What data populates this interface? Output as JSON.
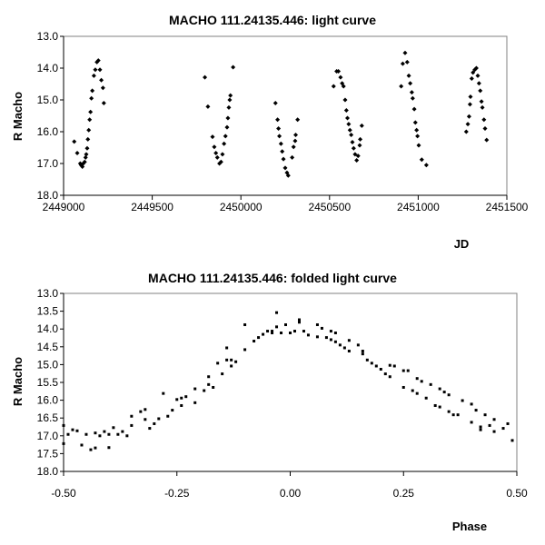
{
  "chart_data": [
    {
      "type": "scatter",
      "title": "MACHO 111.24135.446: light curve",
      "xlabel": "JD",
      "ylabel": "R Macho",
      "xlim": [
        2449000,
        2451500
      ],
      "ylim": [
        18.0,
        13.0
      ],
      "y_inverted": true,
      "grid": false,
      "marker": "diamond",
      "x_ticks": [
        "2449000",
        "2449500",
        "2450000",
        "2450500",
        "2451000",
        "2451500"
      ],
      "x_tick_values": [
        2449000,
        2449500,
        2450000,
        2450500,
        2451000,
        2451500
      ],
      "y_ticks": [
        "13.0",
        "14.0",
        "15.0",
        "16.0",
        "17.0",
        "18.0"
      ],
      "y_tick_values": [
        13,
        14,
        15,
        16,
        17,
        18
      ],
      "points": [
        [
          2449060,
          16.31
        ],
        [
          2449077,
          16.67
        ],
        [
          2449094,
          17.0
        ],
        [
          2449099,
          17.05
        ],
        [
          2449106,
          17.1
        ],
        [
          2449111,
          17.0
        ],
        [
          2449119,
          16.95
        ],
        [
          2449124,
          16.81
        ],
        [
          2449128,
          16.71
        ],
        [
          2449133,
          16.52
        ],
        [
          2449137,
          16.24
        ],
        [
          2449142,
          15.95
        ],
        [
          2449147,
          15.62
        ],
        [
          2449152,
          15.38
        ],
        [
          2449157,
          14.95
        ],
        [
          2449162,
          14.71
        ],
        [
          2449171,
          14.24
        ],
        [
          2449179,
          14.05
        ],
        [
          2449188,
          13.81
        ],
        [
          2449196,
          13.76
        ],
        [
          2449205,
          14.05
        ],
        [
          2449213,
          14.38
        ],
        [
          2449222,
          14.62
        ],
        [
          2449227,
          15.1
        ],
        [
          2449797,
          14.29
        ],
        [
          2449814,
          15.21
        ],
        [
          2449840,
          16.16
        ],
        [
          2449850,
          16.48
        ],
        [
          2449859,
          16.67
        ],
        [
          2449867,
          16.81
        ],
        [
          2449879,
          17.0
        ],
        [
          2449888,
          16.95
        ],
        [
          2449896,
          16.71
        ],
        [
          2449905,
          16.38
        ],
        [
          2449913,
          16.14
        ],
        [
          2449922,
          15.86
        ],
        [
          2449927,
          15.57
        ],
        [
          2449932,
          15.24
        ],
        [
          2449937,
          15.0
        ],
        [
          2449941,
          14.86
        ],
        [
          2449956,
          13.97
        ],
        [
          2450195,
          15.1
        ],
        [
          2450207,
          15.62
        ],
        [
          2450212,
          15.9
        ],
        [
          2450217,
          16.14
        ],
        [
          2450226,
          16.38
        ],
        [
          2450233,
          16.62
        ],
        [
          2450240,
          16.86
        ],
        [
          2450250,
          17.14
        ],
        [
          2450260,
          17.29
        ],
        [
          2450267,
          17.38
        ],
        [
          2450289,
          16.81
        ],
        [
          2450297,
          16.48
        ],
        [
          2450306,
          16.29
        ],
        [
          2450309,
          16.1
        ],
        [
          2450320,
          15.62
        ],
        [
          2450523,
          14.57
        ],
        [
          2450540,
          14.1
        ],
        [
          2450550,
          14.1
        ],
        [
          2450562,
          14.29
        ],
        [
          2450571,
          14.48
        ],
        [
          2450579,
          14.57
        ],
        [
          2450588,
          15.0
        ],
        [
          2450595,
          15.33
        ],
        [
          2450601,
          15.57
        ],
        [
          2450608,
          15.76
        ],
        [
          2450615,
          15.95
        ],
        [
          2450622,
          16.1
        ],
        [
          2450629,
          16.33
        ],
        [
          2450636,
          16.52
        ],
        [
          2450644,
          16.71
        ],
        [
          2450653,
          16.9
        ],
        [
          2450661,
          16.76
        ],
        [
          2450670,
          16.43
        ],
        [
          2450673,
          16.24
        ],
        [
          2450682,
          15.81
        ],
        [
          2450904,
          14.57
        ],
        [
          2450913,
          13.86
        ],
        [
          2450926,
          13.52
        ],
        [
          2450938,
          13.81
        ],
        [
          2450947,
          14.24
        ],
        [
          2450955,
          14.48
        ],
        [
          2450964,
          14.76
        ],
        [
          2450969,
          14.95
        ],
        [
          2450978,
          15.29
        ],
        [
          2450984,
          15.71
        ],
        [
          2450991,
          15.95
        ],
        [
          2450996,
          16.14
        ],
        [
          2451003,
          16.43
        ],
        [
          2451020,
          16.88
        ],
        [
          2451046,
          17.05
        ],
        [
          2451271,
          16.0
        ],
        [
          2451280,
          15.76
        ],
        [
          2451287,
          15.52
        ],
        [
          2451292,
          15.14
        ],
        [
          2451295,
          14.9
        ],
        [
          2451302,
          14.33
        ],
        [
          2451309,
          14.14
        ],
        [
          2451319,
          14.05
        ],
        [
          2451328,
          14.0
        ],
        [
          2451336,
          14.24
        ],
        [
          2451343,
          14.48
        ],
        [
          2451350,
          14.71
        ],
        [
          2451357,
          15.05
        ],
        [
          2451362,
          15.24
        ],
        [
          2451371,
          15.62
        ],
        [
          2451377,
          15.9
        ],
        [
          2451386,
          16.26
        ]
      ]
    },
    {
      "type": "scatter",
      "title": "MACHO 111.24135.446: folded light curve",
      "xlabel": "Phase",
      "ylabel": "R Macho",
      "xlim": [
        -0.5,
        0.5
      ],
      "ylim": [
        18.0,
        13.0
      ],
      "y_inverted": true,
      "grid": false,
      "marker": "square",
      "x_ticks": [
        "-0.50",
        "-0.25",
        "0.00",
        "0.25",
        "0.50"
      ],
      "x_tick_values": [
        -0.5,
        -0.25,
        0,
        0.25,
        0.5
      ],
      "y_ticks": [
        "13.0",
        "13.5",
        "14.0",
        "14.5",
        "15.0",
        "15.5",
        "16.0",
        "16.5",
        "17.0",
        "17.5",
        "18.0"
      ],
      "y_tick_values": [
        13,
        13.5,
        14,
        14.5,
        15,
        15.5,
        16,
        16.5,
        17,
        17.5,
        18
      ],
      "points": [
        [
          -0.5,
          16.71
        ],
        [
          -0.5,
          17.22
        ],
        [
          -0.49,
          16.96
        ],
        [
          -0.48,
          16.83
        ],
        [
          -0.47,
          16.86
        ],
        [
          -0.46,
          17.26
        ],
        [
          -0.45,
          16.96
        ],
        [
          -0.44,
          17.39
        ],
        [
          -0.43,
          17.34
        ],
        [
          -0.43,
          16.92
        ],
        [
          -0.42,
          17.0
        ],
        [
          -0.41,
          16.88
        ],
        [
          -0.4,
          17.33
        ],
        [
          -0.4,
          16.96
        ],
        [
          -0.39,
          16.77
        ],
        [
          -0.38,
          16.96
        ],
        [
          -0.37,
          16.88
        ],
        [
          -0.36,
          17.0
        ],
        [
          -0.35,
          16.71
        ],
        [
          -0.35,
          16.45
        ],
        [
          -0.33,
          16.32
        ],
        [
          -0.32,
          16.26
        ],
        [
          -0.32,
          16.54
        ],
        [
          -0.31,
          16.79
        ],
        [
          -0.3,
          16.66
        ],
        [
          -0.29,
          16.52
        ],
        [
          -0.28,
          15.81
        ],
        [
          -0.27,
          16.45
        ],
        [
          -0.26,
          16.28
        ],
        [
          -0.25,
          15.98
        ],
        [
          -0.24,
          16.15
        ],
        [
          -0.24,
          15.94
        ],
        [
          -0.23,
          15.9
        ],
        [
          -0.21,
          16.07
        ],
        [
          -0.21,
          15.68
        ],
        [
          -0.19,
          15.73
        ],
        [
          -0.18,
          15.34
        ],
        [
          -0.18,
          15.56
        ],
        [
          -0.17,
          15.64
        ],
        [
          -0.16,
          14.96
        ],
        [
          -0.15,
          15.26
        ],
        [
          -0.14,
          14.87
        ],
        [
          -0.14,
          14.53
        ],
        [
          -0.13,
          15.04
        ],
        [
          -0.13,
          14.87
        ],
        [
          -0.12,
          14.92
        ],
        [
          -0.1,
          13.88
        ],
        [
          -0.1,
          14.58
        ],
        [
          -0.08,
          14.34
        ],
        [
          -0.07,
          14.24
        ],
        [
          -0.06,
          14.15
        ],
        [
          -0.05,
          14.06
        ],
        [
          -0.04,
          14.11
        ],
        [
          -0.04,
          14.06
        ],
        [
          -0.03,
          13.54
        ],
        [
          -0.03,
          13.94
        ],
        [
          -0.02,
          14.11
        ],
        [
          -0.01,
          13.88
        ],
        [
          0.0,
          14.11
        ],
        [
          0.01,
          14.06
        ],
        [
          0.02,
          13.74
        ],
        [
          0.02,
          13.81
        ],
        [
          0.03,
          14.06
        ],
        [
          0.04,
          14.17
        ],
        [
          0.06,
          14.22
        ],
        [
          0.06,
          13.88
        ],
        [
          0.07,
          13.98
        ],
        [
          0.08,
          14.24
        ],
        [
          0.09,
          14.06
        ],
        [
          0.09,
          14.3
        ],
        [
          0.1,
          14.11
        ],
        [
          0.1,
          14.36
        ],
        [
          0.11,
          14.45
        ],
        [
          0.12,
          14.53
        ],
        [
          0.13,
          14.32
        ],
        [
          0.13,
          14.62
        ],
        [
          0.15,
          14.45
        ],
        [
          0.16,
          14.7
        ],
        [
          0.16,
          14.62
        ],
        [
          0.17,
          14.87
        ],
        [
          0.18,
          14.96
        ],
        [
          0.19,
          15.04
        ],
        [
          0.2,
          15.13
        ],
        [
          0.21,
          15.26
        ],
        [
          0.22,
          15.02
        ],
        [
          0.22,
          15.34
        ],
        [
          0.23,
          15.04
        ],
        [
          0.25,
          15.17
        ],
        [
          0.25,
          15.64
        ],
        [
          0.26,
          15.17
        ],
        [
          0.27,
          15.73
        ],
        [
          0.28,
          15.81
        ],
        [
          0.28,
          15.39
        ],
        [
          0.29,
          15.47
        ],
        [
          0.3,
          15.94
        ],
        [
          0.31,
          15.56
        ],
        [
          0.32,
          16.15
        ],
        [
          0.33,
          16.19
        ],
        [
          0.33,
          15.68
        ],
        [
          0.34,
          15.77
        ],
        [
          0.35,
          16.32
        ],
        [
          0.35,
          15.85
        ],
        [
          0.36,
          16.41
        ],
        [
          0.37,
          16.41
        ],
        [
          0.38,
          16.01
        ],
        [
          0.4,
          16.62
        ],
        [
          0.4,
          16.11
        ],
        [
          0.41,
          16.28
        ],
        [
          0.42,
          16.75
        ],
        [
          0.42,
          16.83
        ],
        [
          0.43,
          16.41
        ],
        [
          0.44,
          16.71
        ],
        [
          0.45,
          16.54
        ],
        [
          0.45,
          16.88
        ],
        [
          0.47,
          16.79
        ],
        [
          0.48,
          16.66
        ],
        [
          0.49,
          17.13
        ]
      ]
    }
  ]
}
